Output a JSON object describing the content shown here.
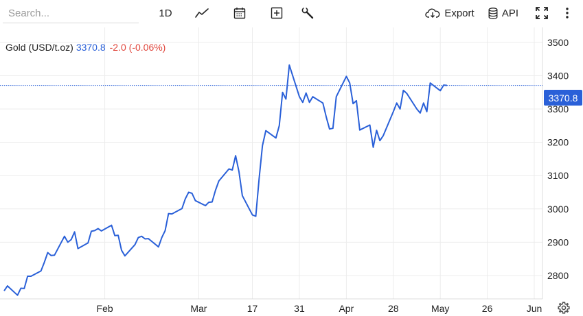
{
  "toolbar": {
    "search_placeholder": "Search...",
    "interval": "1D",
    "export_label": "Export",
    "api_label": "API"
  },
  "legend": {
    "symbol": "Gold (USD/t.oz)",
    "price": "3370.8",
    "change": "-2.0 (-0.06%)"
  },
  "price_tag": "3370.8",
  "colors": {
    "line": "#2a60d8",
    "negative": "#e0443a",
    "grid": "#ececec"
  },
  "chart_data": {
    "type": "line",
    "title": "Gold (USD/t.oz)",
    "last_price": 3370.8,
    "ylim": [
      2730,
      3545
    ],
    "y_ticks": [
      2800,
      2900,
      3000,
      3100,
      3200,
      3300,
      3400,
      3500
    ],
    "x_ticks": [
      {
        "label": "Feb",
        "x": "2025-02-01"
      },
      {
        "label": "Mar",
        "x": "2025-03-01"
      },
      {
        "label": "17",
        "x": "2025-03-17"
      },
      {
        "label": "31",
        "x": "2025-03-31"
      },
      {
        "label": "Apr",
        "x": "2025-04-14"
      },
      {
        "label": "28",
        "x": "2025-04-28"
      },
      {
        "label": "May",
        "x": "2025-05-12"
      },
      {
        "label": "26",
        "x": "2025-05-26"
      },
      {
        "label": "Jun",
        "x": "2025-06-09"
      }
    ],
    "grid": true,
    "series": [
      {
        "name": "Gold (USD/t.oz)",
        "points": [
          [
            "2025-01-02",
            2754
          ],
          [
            "2025-01-03",
            2769
          ],
          [
            "2025-01-06",
            2741
          ],
          [
            "2025-01-07",
            2762
          ],
          [
            "2025-01-08",
            2761
          ],
          [
            "2025-01-09",
            2798
          ],
          [
            "2025-01-10",
            2798
          ],
          [
            "2025-01-13",
            2814
          ],
          [
            "2025-01-14",
            2840
          ],
          [
            "2025-01-15",
            2869
          ],
          [
            "2025-01-16",
            2860
          ],
          [
            "2025-01-17",
            2861
          ],
          [
            "2025-01-20",
            2918
          ],
          [
            "2025-01-21",
            2900
          ],
          [
            "2025-01-22",
            2908
          ],
          [
            "2025-01-23",
            2931
          ],
          [
            "2025-01-24",
            2881
          ],
          [
            "2025-01-27",
            2898
          ],
          [
            "2025-01-28",
            2933
          ],
          [
            "2025-01-29",
            2935
          ],
          [
            "2025-01-30",
            2941
          ],
          [
            "2025-01-31",
            2934
          ],
          [
            "2025-02-03",
            2951
          ],
          [
            "2025-02-04",
            2920
          ],
          [
            "2025-02-05",
            2921
          ],
          [
            "2025-02-06",
            2876
          ],
          [
            "2025-02-07",
            2859
          ],
          [
            "2025-02-10",
            2893
          ],
          [
            "2025-02-11",
            2914
          ],
          [
            "2025-02-12",
            2918
          ],
          [
            "2025-02-13",
            2910
          ],
          [
            "2025-02-14",
            2911
          ],
          [
            "2025-02-17",
            2886
          ],
          [
            "2025-02-18",
            2914
          ],
          [
            "2025-02-19",
            2935
          ],
          [
            "2025-02-20",
            2986
          ],
          [
            "2025-02-21",
            2985
          ],
          [
            "2025-02-24",
            3001
          ],
          [
            "2025-02-25",
            3030
          ],
          [
            "2025-02-26",
            3050
          ],
          [
            "2025-02-27",
            3047
          ],
          [
            "2025-02-28",
            3025
          ],
          [
            "2025-03-03",
            3010
          ],
          [
            "2025-03-04",
            3020
          ],
          [
            "2025-03-05",
            3021
          ],
          [
            "2025-03-06",
            3056
          ],
          [
            "2025-03-07",
            3084
          ],
          [
            "2025-03-10",
            3120
          ],
          [
            "2025-03-11",
            3117
          ],
          [
            "2025-03-12",
            3160
          ],
          [
            "2025-03-13",
            3112
          ],
          [
            "2025-03-14",
            3040
          ],
          [
            "2025-03-17",
            2982
          ],
          [
            "2025-03-18",
            2978
          ],
          [
            "2025-03-19",
            3090
          ],
          [
            "2025-03-20",
            3190
          ],
          [
            "2025-03-21",
            3235
          ],
          [
            "2025-03-24",
            3213
          ],
          [
            "2025-03-25",
            3250
          ],
          [
            "2025-03-26",
            3350
          ],
          [
            "2025-03-27",
            3330
          ],
          [
            "2025-03-28",
            3432
          ],
          [
            "2025-03-31",
            3337
          ],
          [
            "2025-04-01",
            3320
          ],
          [
            "2025-04-02",
            3348
          ],
          [
            "2025-04-03",
            3320
          ],
          [
            "2025-04-04",
            3337
          ],
          [
            "2025-04-07",
            3318
          ],
          [
            "2025-04-08",
            3276
          ],
          [
            "2025-04-09",
            3240
          ],
          [
            "2025-04-10",
            3242
          ],
          [
            "2025-04-11",
            3337
          ],
          [
            "2025-04-14",
            3398
          ],
          [
            "2025-04-15",
            3378
          ],
          [
            "2025-04-16",
            3316
          ],
          [
            "2025-04-17",
            3325
          ],
          [
            "2025-04-18",
            3237
          ],
          [
            "2025-04-21",
            3252
          ],
          [
            "2025-04-22",
            3185
          ],
          [
            "2025-04-23",
            3236
          ],
          [
            "2025-04-24",
            3205
          ],
          [
            "2025-04-25",
            3220
          ],
          [
            "2025-04-28",
            3292
          ],
          [
            "2025-04-29",
            3318
          ],
          [
            "2025-04-30",
            3300
          ],
          [
            "2025-05-01",
            3356
          ],
          [
            "2025-05-02",
            3347
          ],
          [
            "2025-05-05",
            3300
          ],
          [
            "2025-05-06",
            3288
          ],
          [
            "2025-05-07",
            3318
          ],
          [
            "2025-05-08",
            3292
          ],
          [
            "2025-05-09",
            3378
          ],
          [
            "2025-05-12",
            3355
          ],
          [
            "2025-05-13",
            3372
          ],
          [
            "2025-05-14",
            3370.8
          ]
        ]
      }
    ]
  }
}
